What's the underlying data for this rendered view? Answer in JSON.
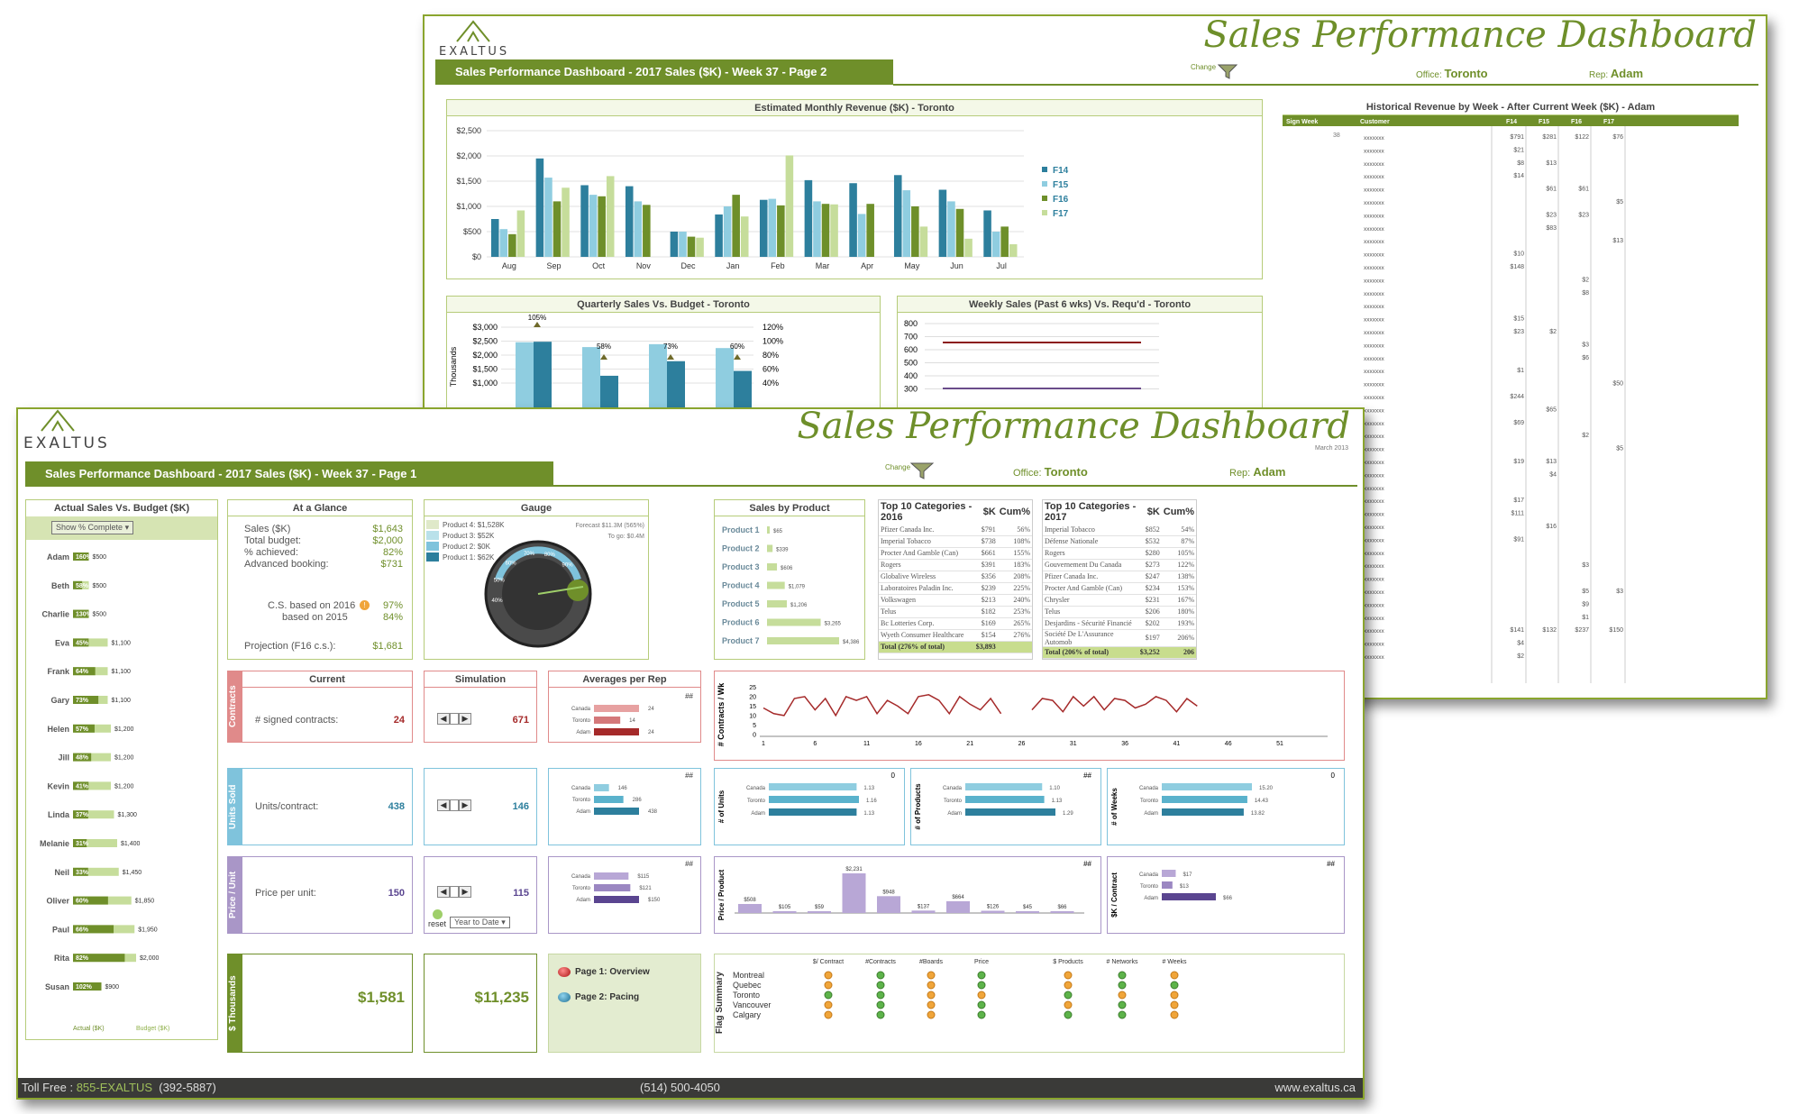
{
  "page2": {
    "logo_text": "EXALTUS",
    "title": "Sales Performance Dashboard",
    "banner": "Sales Performance Dashboard - 2017  Sales ($K) - Week 37 - Page 2",
    "change_label": "Change",
    "office_label": "Office:",
    "office_value": "Toronto",
    "rep_label": "Rep:",
    "rep_value": "Adam",
    "monthly_chart": {
      "title": "Estimated Monthly Revenue ($K) - Toronto",
      "type": "bar",
      "categories": [
        "Aug",
        "Sep",
        "Oct",
        "Nov",
        "Dec",
        "Jan",
        "Feb",
        "Mar",
        "Apr",
        "May",
        "Jun",
        "Jul"
      ],
      "yticks": [
        "$0",
        "$500",
        "$1,000",
        "$1,500",
        "$2,000",
        "$2,500"
      ],
      "ylim": [
        0,
        2500
      ],
      "series": [
        {
          "name": "F14",
          "color": "#2d7f9d",
          "values": [
            750,
            1950,
            1420,
            1400,
            500,
            840,
            1130,
            1520,
            1460,
            1620,
            1330,
            920
          ]
        },
        {
          "name": "F15",
          "color": "#8fcde0",
          "values": [
            550,
            1570,
            1230,
            1100,
            500,
            1000,
            1150,
            1100,
            850,
            1320,
            1100,
            500
          ]
        },
        {
          "name": "F16",
          "color": "#6e8f2a",
          "values": [
            450,
            1100,
            1200,
            1030,
            400,
            1230,
            1020,
            1050,
            1050,
            1000,
            950,
            600
          ]
        },
        {
          "name": "F17",
          "color": "#c6dd9b",
          "values": [
            920,
            1370,
            1600,
            0,
            380,
            800,
            2010,
            1040,
            0,
            600,
            360,
            250
          ]
        }
      ]
    },
    "quarterly_chart": {
      "title": "Quarterly Sales Vs. Budget - Toronto",
      "type": "bar",
      "ylabel": "Thousands",
      "yticks": [
        "$3,000",
        "$2,500",
        "$2,000",
        "$1,500",
        "$1,000"
      ],
      "y2ticks": [
        "120%",
        "100%",
        "80%",
        "60%",
        "40%"
      ],
      "pct_labels": [
        "105%",
        "58%",
        "73%",
        "60%"
      ]
    },
    "weekly_chart": {
      "title": "Weekly Sales (Past 6 wks) Vs. Requ'd - Toronto",
      "type": "line",
      "yticks": [
        "800",
        "700",
        "600",
        "500",
        "400",
        "300"
      ]
    },
    "historical": {
      "title": "Historical Revenue by Week - After Current Week ($K) - Adam",
      "headers": [
        "Sign Week",
        "Customer",
        "F14",
        "F15",
        "F16",
        "F17"
      ],
      "week": "38",
      "customer": "xxxxxxx",
      "rows": [
        [
          "$791",
          "$281",
          "$122",
          "$76"
        ],
        [
          "$21",
          "",
          "",
          ""
        ],
        [
          "$8",
          "$13",
          "",
          ""
        ],
        [
          "$14",
          "",
          "",
          ""
        ],
        [
          "",
          "$61",
          "$61",
          ""
        ],
        [
          "",
          "",
          "",
          "$5"
        ],
        [
          "",
          "$23",
          "$23",
          ""
        ],
        [
          "",
          "$83",
          "",
          ""
        ],
        [
          "",
          "",
          "",
          "$13"
        ],
        [
          "$10",
          "",
          "",
          ""
        ],
        [
          "$148",
          "",
          "",
          ""
        ],
        [
          "",
          "",
          "$2",
          ""
        ],
        [
          "",
          "",
          "$8",
          ""
        ],
        [
          "",
          "",
          "",
          ""
        ],
        [
          "$15",
          "",
          "",
          ""
        ],
        [
          "$23",
          "$2",
          "",
          ""
        ],
        [
          "",
          "",
          "$3",
          ""
        ],
        [
          "",
          "",
          "$6",
          ""
        ],
        [
          "$1",
          "",
          "",
          ""
        ],
        [
          "",
          "",
          "",
          "$50"
        ],
        [
          "$244",
          "",
          "",
          ""
        ],
        [
          "",
          "$65",
          "",
          ""
        ],
        [
          "$69",
          "",
          "",
          ""
        ],
        [
          "",
          "",
          "$2",
          ""
        ],
        [
          "",
          "",
          "",
          "$5"
        ],
        [
          "$19",
          "$13",
          "",
          ""
        ],
        [
          "",
          "$4",
          "",
          ""
        ],
        [
          "",
          "",
          "",
          ""
        ],
        [
          "$17",
          "",
          "",
          ""
        ],
        [
          "$111",
          "",
          "",
          ""
        ],
        [
          "",
          "$16",
          "",
          ""
        ],
        [
          "$91",
          "",
          "",
          ""
        ],
        [
          "",
          "",
          "",
          ""
        ],
        [
          "",
          "",
          "$3",
          ""
        ],
        [
          "",
          "",
          "",
          ""
        ],
        [
          "",
          "",
          "$5",
          "$3"
        ],
        [
          "",
          "",
          "$9",
          ""
        ],
        [
          "",
          "",
          "$1",
          ""
        ],
        [
          "$141",
          "$132",
          "$237",
          "$150"
        ],
        [
          "$4",
          "",
          "",
          ""
        ],
        [
          "$2",
          "",
          "",
          ""
        ]
      ]
    }
  },
  "page1": {
    "logo_text": "EXALTUS",
    "title": "Sales Performance Dashboard",
    "date": "March 2013",
    "banner": "Sales Performance Dashboard - 2017  Sales ($K) - Week 37 - Page 1",
    "change_label": "Change",
    "office_label": "Office:",
    "office_value": "Toronto",
    "rep_label": "Rep:",
    "rep_value": "Adam",
    "actual_vs_budget": {
      "title": "Actual Sales Vs. Budget ($K)",
      "dropdown": "Show % Complete",
      "legend_actual": "Actual ($K)",
      "legend_budget": "Budget ($K)",
      "reps": [
        {
          "name": "Adam",
          "pct": "160%",
          "budget": "$500",
          "ratio": 1.6,
          "b": 500
        },
        {
          "name": "Beth",
          "pct": "58%",
          "budget": "$500",
          "ratio": 0.58,
          "b": 500
        },
        {
          "name": "Charlie",
          "pct": "130%",
          "budget": "$500",
          "ratio": 1.3,
          "b": 500
        },
        {
          "name": "Eva",
          "pct": "45%",
          "budget": "$1,100",
          "ratio": 0.45,
          "b": 1100
        },
        {
          "name": "Frank",
          "pct": "64%",
          "budget": "$1,100",
          "ratio": 0.64,
          "b": 1100
        },
        {
          "name": "Gary",
          "pct": "73%",
          "budget": "$1,100",
          "ratio": 0.73,
          "b": 1100
        },
        {
          "name": "Helen",
          "pct": "57%",
          "budget": "$1,200",
          "ratio": 0.57,
          "b": 1200
        },
        {
          "name": "Jill",
          "pct": "48%",
          "budget": "$1,200",
          "ratio": 0.48,
          "b": 1200
        },
        {
          "name": "Kevin",
          "pct": "41%",
          "budget": "$1,200",
          "ratio": 0.41,
          "b": 1200
        },
        {
          "name": "Linda",
          "pct": "37%",
          "budget": "$1,300",
          "ratio": 0.37,
          "b": 1300
        },
        {
          "name": "Melanie",
          "pct": "31%",
          "budget": "$1,400",
          "ratio": 0.31,
          "b": 1400
        },
        {
          "name": "Neil",
          "pct": "33%",
          "budget": "$1,450",
          "ratio": 0.33,
          "b": 1450
        },
        {
          "name": "Oliver",
          "pct": "60%",
          "budget": "$1,850",
          "ratio": 0.6,
          "b": 1850
        },
        {
          "name": "Paul",
          "pct": "66%",
          "budget": "$1,950",
          "ratio": 0.66,
          "b": 1950
        },
        {
          "name": "Rita",
          "pct": "82%",
          "budget": "$2,000",
          "ratio": 0.82,
          "b": 2000
        },
        {
          "name": "Susan",
          "pct": "102%",
          "budget": "$900",
          "ratio": 1.02,
          "b": 900
        }
      ]
    },
    "glance": {
      "title": "At a Glance",
      "sales_label": "Sales ($K)",
      "sales": "$1,643",
      "budget_label": "Total budget:",
      "budget": "$2,000",
      "pct_label": "% achieved:",
      "pct": "82%",
      "adv_label": "Advanced booking:",
      "adv": "$731",
      "cs2016_label": "C.S. based on 2016",
      "cs2016": "97%",
      "cs2015_label": "based on 2015",
      "cs2015": "84%",
      "proj_label": "Projection (F16 c.s.):",
      "proj": "$1,681"
    },
    "gauge": {
      "title": "Gauge",
      "legend": [
        "Product 4: $1,528K",
        "Product 3: $52K",
        "Product 2: $0K",
        "Product 1: $62K"
      ],
      "legend_colors": [
        "#dfe9c9",
        "#b9e1ea",
        "#7fc3dc",
        "#2d7f9d"
      ],
      "forecast": "Forecast $11.3M (565%)",
      "to_go": "To go: $0.4M",
      "ticks": [
        "40%",
        "50%",
        "60%",
        "70%",
        "80%",
        "90%"
      ]
    },
    "sales_by_product": {
      "title": "Sales by Product",
      "type": "bar",
      "categories": [
        "Product 1",
        "Product 2",
        "Product 3",
        "Product 4",
        "Product 5",
        "Product 6",
        "Product 7"
      ],
      "values": [
        65,
        339,
        606,
        1079,
        1206,
        3265,
        4386
      ],
      "labels": [
        "$65",
        "$339",
        "$606",
        "$1,079",
        "$1,206",
        "$3,265",
        "$4,386"
      ]
    },
    "top2016": {
      "title": "Top 10 Categories - 2016",
      "h2": "$K",
      "h3": "Cum%",
      "rows": [
        [
          "Pfizer Canada Inc.",
          "$791",
          "56%"
        ],
        [
          "Imperial Tobacco",
          "$738",
          "108%"
        ],
        [
          "Procter And Gamble (Can)",
          "$661",
          "155%"
        ],
        [
          "Rogers",
          "$391",
          "183%"
        ],
        [
          "Globalive Wireless",
          "$356",
          "208%"
        ],
        [
          "Laboratoires Paladin Inc.",
          "$239",
          "225%"
        ],
        [
          "Volkswagen",
          "$213",
          "240%"
        ],
        [
          "Telus",
          "$182",
          "253%"
        ],
        [
          "Bc Lotteries Corp.",
          "$169",
          "265%"
        ],
        [
          "Wyeth Consumer Healthcare",
          "$154",
          "276%"
        ]
      ],
      "total": [
        "Total (276% of total)",
        "$3,893",
        ""
      ]
    },
    "top2017": {
      "title": "Top 10 Categories - 2017",
      "h2": "$K",
      "h3": "Cum%",
      "rows": [
        [
          "Imperial Tobacco",
          "$852",
          "54%"
        ],
        [
          "Défense Nationale",
          "$532",
          "87%"
        ],
        [
          "Rogers",
          "$280",
          "105%"
        ],
        [
          "Gouvernement Du Canada",
          "$273",
          "122%"
        ],
        [
          "Pfizer Canada Inc.",
          "$247",
          "138%"
        ],
        [
          "Procter And Gamble (Can)",
          "$234",
          "153%"
        ],
        [
          "Chrysler",
          "$231",
          "167%"
        ],
        [
          "Telus",
          "$206",
          "180%"
        ],
        [
          "Desjardins - Sécurité Financié",
          "$202",
          "193%"
        ],
        [
          "Société De L'Assurance Automob",
          "$197",
          "206%"
        ]
      ],
      "total": [
        "Total (206% of total)",
        "$3,252",
        "206"
      ]
    },
    "rows": {
      "current_h": "Current",
      "simulation_h": "Simulation",
      "averages_h": "Averages per Rep",
      "contracts": {
        "side": "Contracts",
        "label": "# signed contracts:",
        "current": "24",
        "sim": "671",
        "color": "#e08a8a",
        "bars": [
          {
            "name": "Canada",
            "v": 24,
            "lbl": "24"
          },
          {
            "name": "Toronto",
            "v": 14,
            "lbl": "14"
          },
          {
            "name": "Adam",
            "v": 24,
            "lbl": "24"
          }
        ],
        "barcolors": [
          "#e7a1a1",
          "#d4787a",
          "#a52a2a"
        ]
      },
      "units": {
        "side": "Units Sold",
        "label": "Units/contract:",
        "current": "438",
        "sim": "146",
        "color": "#7fc3dc",
        "bars": [
          {
            "name": "Canada",
            "v": 146,
            "lbl": "146"
          },
          {
            "name": "Toronto",
            "v": 286,
            "lbl": "286"
          },
          {
            "name": "Adam",
            "v": 438,
            "lbl": "438"
          }
        ],
        "barcolors": [
          "#8fcde0",
          "#5ab2cc",
          "#2d7f9d"
        ]
      },
      "price": {
        "side": "Price / Unit",
        "label": "Price per unit:",
        "current": "150",
        "sim": "115",
        "color": "#a996c7",
        "bars": [
          {
            "name": "Canada",
            "v": 115,
            "lbl": "$115"
          },
          {
            "name": "Toronto",
            "v": 121,
            "lbl": "$121"
          },
          {
            "name": "Adam",
            "v": 150,
            "lbl": "$150"
          }
        ],
        "barcolors": [
          "#b8a7d6",
          "#9b87c2",
          "#5a4590"
        ]
      },
      "thousands": {
        "side": "$ Thousands",
        "current": "$1,581",
        "sim": "$11,235",
        "color": "#6f8f2a"
      },
      "reset": "reset",
      "period": "Year to Date",
      "hash": "##"
    },
    "contracts_wk": {
      "ylabel": "# Contracts / Wk",
      "type": "line",
      "yticks": [
        "25",
        "20",
        "15",
        "10",
        "5",
        "0"
      ],
      "xticks": [
        "1",
        "6",
        "11",
        "16",
        "21",
        "26",
        "31",
        "36",
        "41",
        "46",
        "51"
      ],
      "values": [
        15,
        12,
        11,
        20,
        21,
        14,
        20,
        11,
        21,
        19,
        21,
        12,
        19,
        16,
        12,
        21,
        22,
        19,
        12,
        21,
        17,
        14,
        20,
        12,
        null,
        null,
        14,
        20,
        19,
        13,
        21,
        16,
        21,
        14,
        20,
        19,
        15,
        17,
        21,
        19,
        13,
        20,
        16
      ]
    },
    "units_charts": [
      {
        "ylabel": "# of Units",
        "top": "0",
        "names": [
          "Canada",
          "Toronto",
          "Adam"
        ],
        "values": [
          1.13,
          1.16,
          1.13
        ],
        "labels": [
          "1.13",
          "1.16",
          "1.13"
        ]
      },
      {
        "ylabel": "# of Products",
        "top": "##",
        "names": [
          "Canada",
          "Toronto",
          "Adam"
        ],
        "values": [
          1.1,
          1.13,
          1.29
        ],
        "labels": [
          "1.10",
          "1.13",
          "1.29"
        ]
      },
      {
        "ylabel": "# of Weeks",
        "top": "0",
        "names": [
          "Canada",
          "Toronto",
          "Adam"
        ],
        "values": [
          15.2,
          14.43,
          13.82
        ],
        "labels": [
          "15.20",
          "14.43",
          "13.82"
        ]
      }
    ],
    "price_product": {
      "ylabel": "Price / Product",
      "top": "##",
      "values": [
        508,
        105,
        59,
        2231,
        948,
        137,
        664,
        126,
        45,
        66
      ],
      "labels": [
        "$508",
        "$105",
        "$59",
        "$2,231",
        "$948",
        "$137",
        "$664",
        "$126",
        "$45",
        "$66"
      ]
    },
    "sk_contract": {
      "ylabel": "$K / Contract",
      "top": "##",
      "names": [
        "Canada",
        "Toronto",
        "Adam"
      ],
      "values": [
        17,
        13,
        66
      ],
      "labels": [
        "$17",
        "$13",
        "$66"
      ]
    },
    "nav": {
      "page1": "Page 1: Overview",
      "page2": "Page 2: Pacing"
    },
    "flags": {
      "side": "Flag Summary",
      "cols": [
        "$/ Contract",
        "#Contracts",
        "#Boards",
        "Price",
        "$ Products",
        "# Networks",
        "# Weeks"
      ],
      "cities": [
        "Montreal",
        "Quebec",
        "Toronto",
        "Vancouver",
        "Calgary"
      ],
      "matrix": [
        [
          "o",
          "g",
          "o",
          "g",
          "o",
          "g",
          "o"
        ],
        [
          "o",
          "g",
          "o",
          "g",
          "o",
          "g",
          "g"
        ],
        [
          "g",
          "g",
          "o",
          "o",
          "g",
          "o",
          "o"
        ],
        [
          "o",
          "g",
          "o",
          "g",
          "o",
          "g",
          "o"
        ],
        [
          "o",
          "g",
          "o",
          "g",
          "g",
          "g",
          "o"
        ]
      ]
    },
    "footer": {
      "toll_label": "Toll Free :",
      "toll": "855-EXALTUS",
      "toll2": "(392-5887)",
      "phone": "(514) 500-4050",
      "web": "www.exaltus.ca"
    }
  }
}
